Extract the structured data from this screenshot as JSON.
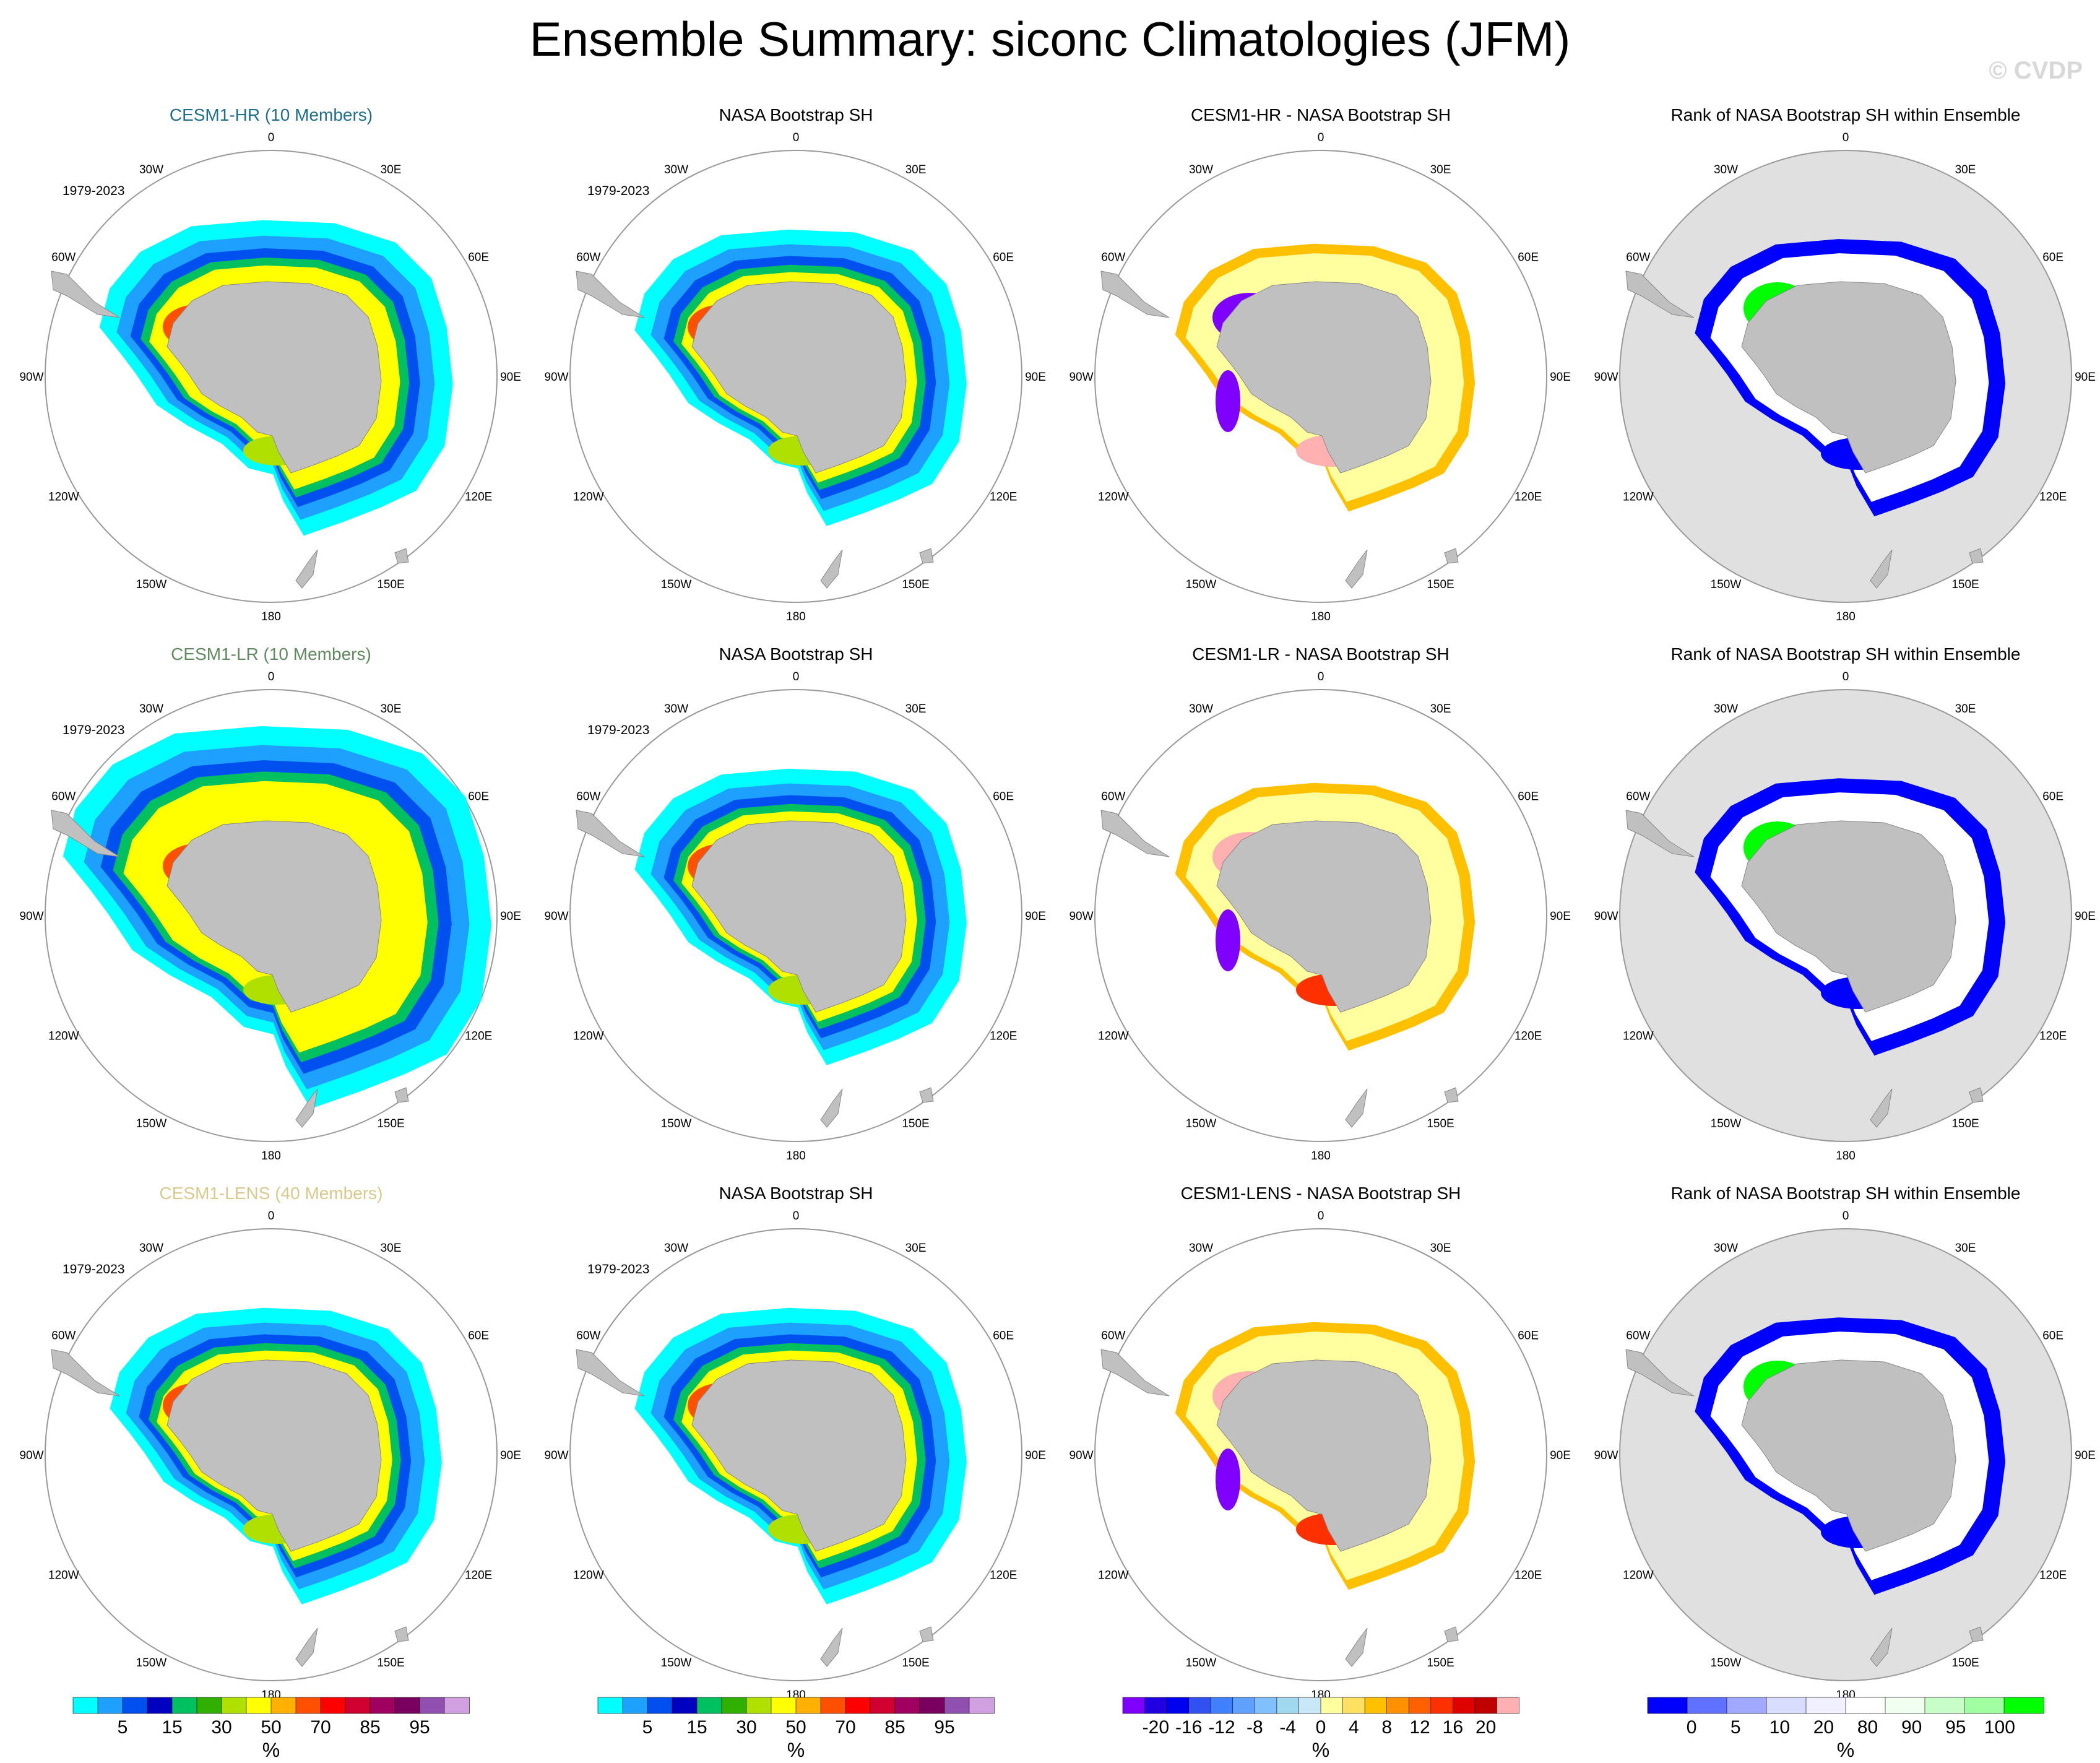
{
  "title": "Ensemble Summary: siconc Climatologies (JFM)",
  "watermark": "© CVDP",
  "colors": {
    "land": "#c0c0c0",
    "rank_background": "#e0e0e0",
    "ring": "#999999",
    "title_hr": "#1e6e8c",
    "title_lr": "#5e8a5e",
    "title_lens": "#d9c98a"
  },
  "period_label": "1979-2023",
  "longitude_labels": [
    "0",
    "30E",
    "60E",
    "90E",
    "120E",
    "150E",
    "180",
    "150W",
    "120W",
    "90W",
    "60W",
    "30W"
  ],
  "panels": [
    {
      "title": "CESM1-HR (10 Members)",
      "kind": "clim",
      "title_color": "#1e6e8c",
      "show_period": true
    },
    {
      "title": "NASA Bootstrap SH",
      "kind": "clim",
      "title_color": "#000000",
      "show_period": true
    },
    {
      "title": "CESM1-HR - NASA Bootstrap SH",
      "kind": "diff",
      "title_color": "#000000",
      "show_period": false
    },
    {
      "title": "Rank of NASA Bootstrap SH within Ensemble",
      "kind": "rank",
      "title_color": "#000000",
      "show_period": false
    },
    {
      "title": "CESM1-LR (10 Members)",
      "kind": "clim",
      "title_color": "#5e8a5e",
      "show_period": true
    },
    {
      "title": "NASA Bootstrap SH",
      "kind": "clim",
      "title_color": "#000000",
      "show_period": true
    },
    {
      "title": "CESM1-LR - NASA Bootstrap SH",
      "kind": "diff",
      "title_color": "#000000",
      "show_period": false
    },
    {
      "title": "Rank of NASA Bootstrap SH within Ensemble",
      "kind": "rank",
      "title_color": "#000000",
      "show_period": false
    },
    {
      "title": "CESM1-LENS (40 Members)",
      "kind": "clim",
      "title_color": "#d9c98a",
      "show_period": true
    },
    {
      "title": "NASA Bootstrap SH",
      "kind": "clim",
      "title_color": "#000000",
      "show_period": true
    },
    {
      "title": "CESM1-LENS - NASA Bootstrap SH",
      "kind": "diff",
      "title_color": "#000000",
      "show_period": false
    },
    {
      "title": "Rank of NASA Bootstrap SH within Ensemble",
      "kind": "rank",
      "title_color": "#000000",
      "show_period": false
    }
  ],
  "colorbars": [
    {
      "unit": "%",
      "colors": [
        "#00ffff",
        "#1ea0ff",
        "#0050f0",
        "#0000c0",
        "#00c060",
        "#30b000",
        "#b0e000",
        "#ffff00",
        "#ffb000",
        "#ff5000",
        "#ff0000",
        "#d00030",
        "#a00060",
        "#7a0060",
        "#9050b0",
        "#d0a0e0"
      ],
      "labels": [
        "5",
        "15",
        "30",
        "50",
        "70",
        "85",
        "95"
      ]
    },
    {
      "unit": "%",
      "colors": [
        "#00ffff",
        "#1ea0ff",
        "#0050f0",
        "#0000c0",
        "#00c060",
        "#30b000",
        "#b0e000",
        "#ffff00",
        "#ffb000",
        "#ff5000",
        "#ff0000",
        "#d00030",
        "#a00060",
        "#7a0060",
        "#9050b0",
        "#d0a0e0"
      ],
      "labels": [
        "5",
        "15",
        "30",
        "50",
        "70",
        "85",
        "95"
      ]
    },
    {
      "unit": "%",
      "colors": [
        "#8000ff",
        "#2000e0",
        "#0000f0",
        "#3050f0",
        "#4080ff",
        "#60a0ff",
        "#80c0ff",
        "#a0d8f0",
        "#c8e8f8",
        "#ffffa0",
        "#ffe060",
        "#ffc000",
        "#ff9000",
        "#ff6000",
        "#ff3000",
        "#e00000",
        "#c00000",
        "#ffb0b0"
      ],
      "labels": [
        "-20",
        "-16",
        "-12",
        "-8",
        "-4",
        "0",
        "4",
        "8",
        "12",
        "16",
        "20"
      ]
    },
    {
      "unit": "%",
      "colors": [
        "#0000ff",
        "#6070ff",
        "#a0a8ff",
        "#d8dcff",
        "#f0f0ff",
        "#ffffff",
        "#f0fff0",
        "#c8ffc8",
        "#a0ffa0",
        "#00ff00"
      ],
      "labels": [
        "0",
        "5",
        "10",
        "20",
        "80",
        "90",
        "95",
        "100"
      ]
    }
  ]
}
